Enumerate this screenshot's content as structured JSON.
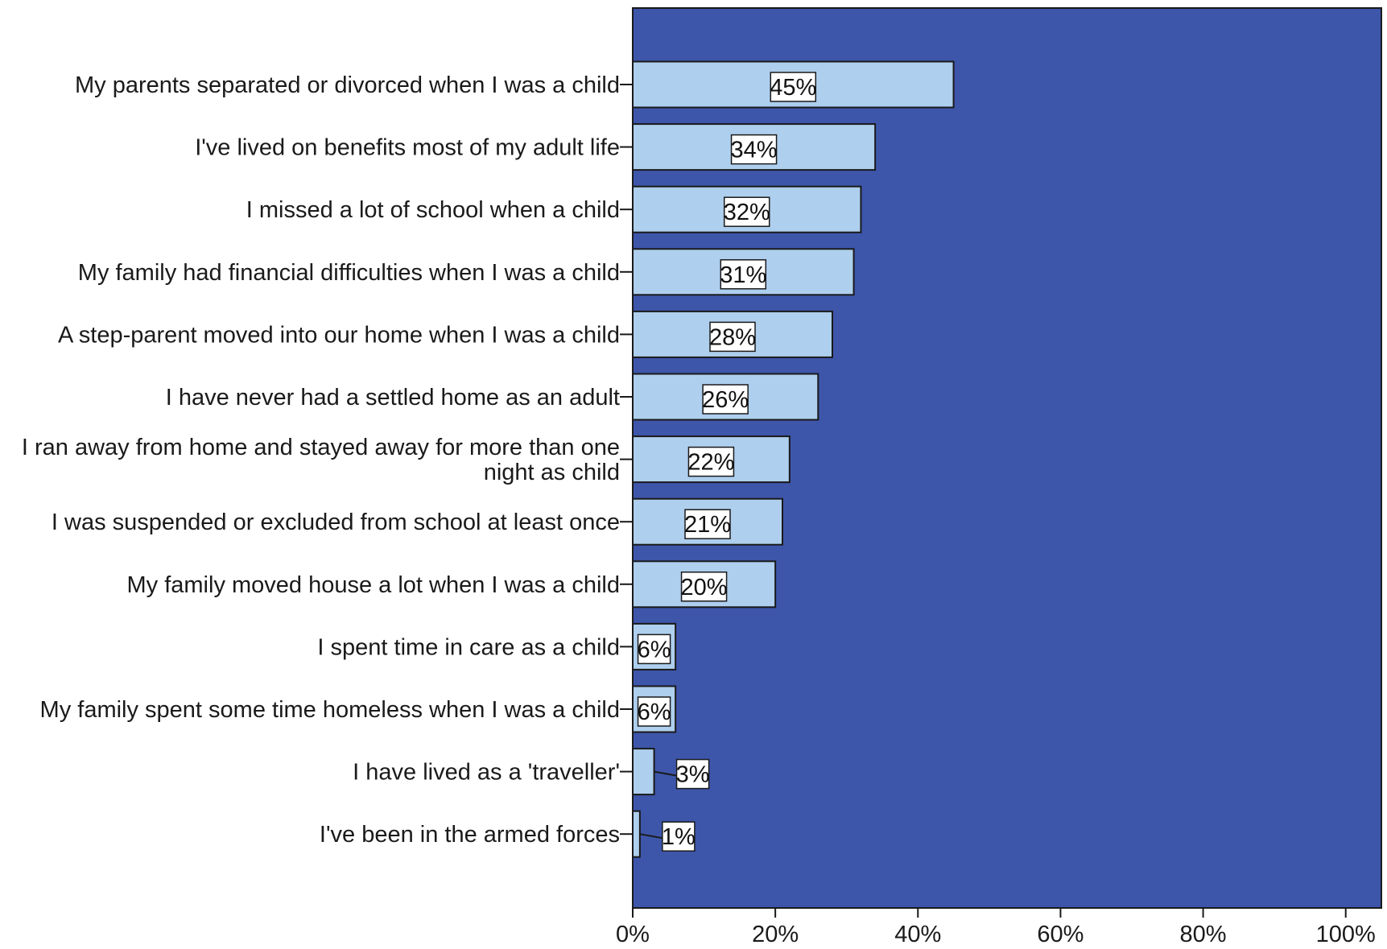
{
  "chart_data": {
    "type": "bar",
    "orientation": "horizontal",
    "categories": [
      [
        "My parents separated or divorced when I was a child"
      ],
      [
        "I've lived on benefits most of my adult life"
      ],
      [
        "I missed a lot of school when a child"
      ],
      [
        "My family had financial difficulties when I was a child"
      ],
      [
        "A step-parent moved into our home when I was a child"
      ],
      [
        "I have never had a settled home as an adult"
      ],
      [
        "I ran away from home and stayed away for more than one",
        "night as child"
      ],
      [
        "I was suspended or excluded from school at least once"
      ],
      [
        "My family moved house a lot when I was a child"
      ],
      [
        "I spent time in care as a child"
      ],
      [
        "My family spent some time homeless when I was a child"
      ],
      [
        "I have lived as a 'traveller'"
      ],
      [
        "I've been in the armed forces"
      ]
    ],
    "values": [
      45,
      34,
      32,
      31,
      28,
      26,
      22,
      21,
      20,
      6,
      6,
      3,
      1
    ],
    "value_labels": [
      "45%",
      "34%",
      "32%",
      "31%",
      "28%",
      "26%",
      "22%",
      "21%",
      "20%",
      "6%",
      "6%",
      "3%",
      "1%"
    ],
    "xlim": [
      0,
      105
    ],
    "x_ticks": [
      0,
      20,
      40,
      60,
      80,
      100
    ],
    "x_tick_labels": [
      "0%",
      "20%",
      "40%",
      "60%",
      "80%",
      "100%"
    ],
    "grid": false,
    "colors": {
      "plot_background": "#3d56aa",
      "bar_fill": "#aecfee",
      "bar_stroke": "#1a1a1a",
      "label_box_fill": "#ffffff",
      "axis": "#1a1a1a"
    }
  }
}
